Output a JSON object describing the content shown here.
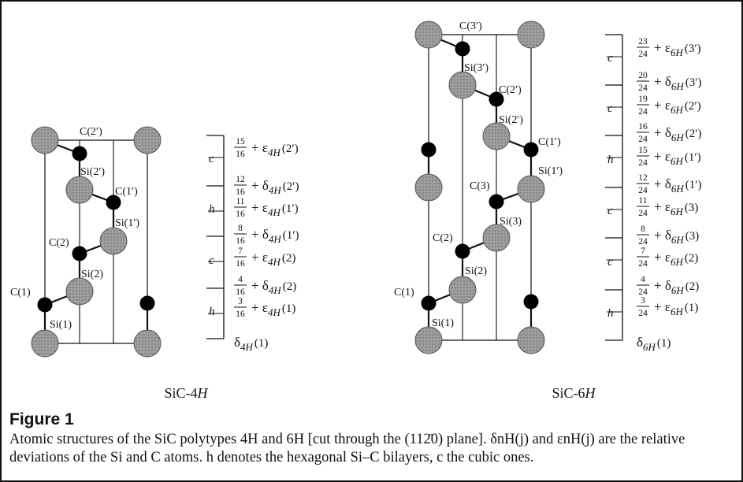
{
  "panels": [
    {
      "id": "4h",
      "title": "SiC-4H",
      "labels": [
        "C(2′)",
        "Si(2′)",
        "C(1′)",
        "Si(1′)",
        "C(2)",
        "Si(2)",
        "C(1)",
        "Si(1)"
      ],
      "stacking": [
        "c",
        "h",
        "c",
        "h"
      ],
      "fractions": [
        {
          "num": "15",
          "den": "16",
          "sym": "ε",
          "sub": "4H",
          "atom": "(2′)"
        },
        {
          "num": "12",
          "den": "16",
          "sym": "δ",
          "sub": "4H",
          "atom": "(2′)"
        },
        {
          "num": "11",
          "den": "16",
          "sym": "ε",
          "sub": "4H",
          "atom": "(1′)"
        },
        {
          "num": "8",
          "den": "16",
          "sym": "δ",
          "sub": "4H",
          "atom": "(1′)"
        },
        {
          "num": "7",
          "den": "16",
          "sym": "ε",
          "sub": "4H",
          "atom": "(2)"
        },
        {
          "num": "4",
          "den": "16",
          "sym": "δ",
          "sub": "4H",
          "atom": "(2)"
        },
        {
          "num": "3",
          "den": "16",
          "sym": "ε",
          "sub": "4H",
          "atom": "(1)"
        }
      ],
      "base": {
        "sym": "δ",
        "sub": "4H",
        "atom": "(1)"
      }
    },
    {
      "id": "6h",
      "title": "SiC-6H",
      "labels": [
        "C(3′)",
        "Si(3′)",
        "C(2′)",
        "Si(2′)",
        "C(1′)",
        "Si(1′)",
        "C(3)",
        "Si(3)",
        "C(2)",
        "Si(2)",
        "C(1)",
        "Si(1)"
      ],
      "stacking": [
        "c",
        "c",
        "h",
        "c",
        "c",
        "h"
      ],
      "fractions": [
        {
          "num": "23",
          "den": "24",
          "sym": "ε",
          "sub": "6H",
          "atom": "(3′)"
        },
        {
          "num": "20",
          "den": "24",
          "sym": "δ",
          "sub": "6H",
          "atom": "(3′)"
        },
        {
          "num": "19",
          "den": "24",
          "sym": "ε",
          "sub": "6H",
          "atom": "(2′)"
        },
        {
          "num": "16",
          "den": "24",
          "sym": "δ",
          "sub": "6H",
          "atom": "(2′)"
        },
        {
          "num": "15",
          "den": "24",
          "sym": "ε",
          "sub": "6H",
          "atom": "(1′)"
        },
        {
          "num": "12",
          "den": "24",
          "sym": "δ",
          "sub": "6H",
          "atom": "(1′)"
        },
        {
          "num": "11",
          "den": "24",
          "sym": "ε",
          "sub": "6H",
          "atom": "(3)"
        },
        {
          "num": "8",
          "den": "24",
          "sym": "δ",
          "sub": "6H",
          "atom": "(3)"
        },
        {
          "num": "7",
          "den": "24",
          "sym": "ε",
          "sub": "6H",
          "atom": "(2)"
        },
        {
          "num": "4",
          "den": "24",
          "sym": "δ",
          "sub": "6H",
          "atom": "(2)"
        },
        {
          "num": "3",
          "den": "24",
          "sym": "ε",
          "sub": "6H",
          "atom": "(1)"
        }
      ],
      "base": {
        "sym": "δ",
        "sub": "6H",
        "atom": "(1)"
      }
    }
  ],
  "figure_label": "Figure 1",
  "caption": "Atomic structures of the SiC polytypes 4H and 6H [cut through the (112̄0) plane]. δnH(j) and εnH(j) are the relative deviations of the Si and C atoms. h denotes the hexagonal Si–C bilayers, c the cubic ones.",
  "colors": {
    "si_atom": "#9a9a9a",
    "c_atom": "#000000",
    "line": "#111111"
  }
}
